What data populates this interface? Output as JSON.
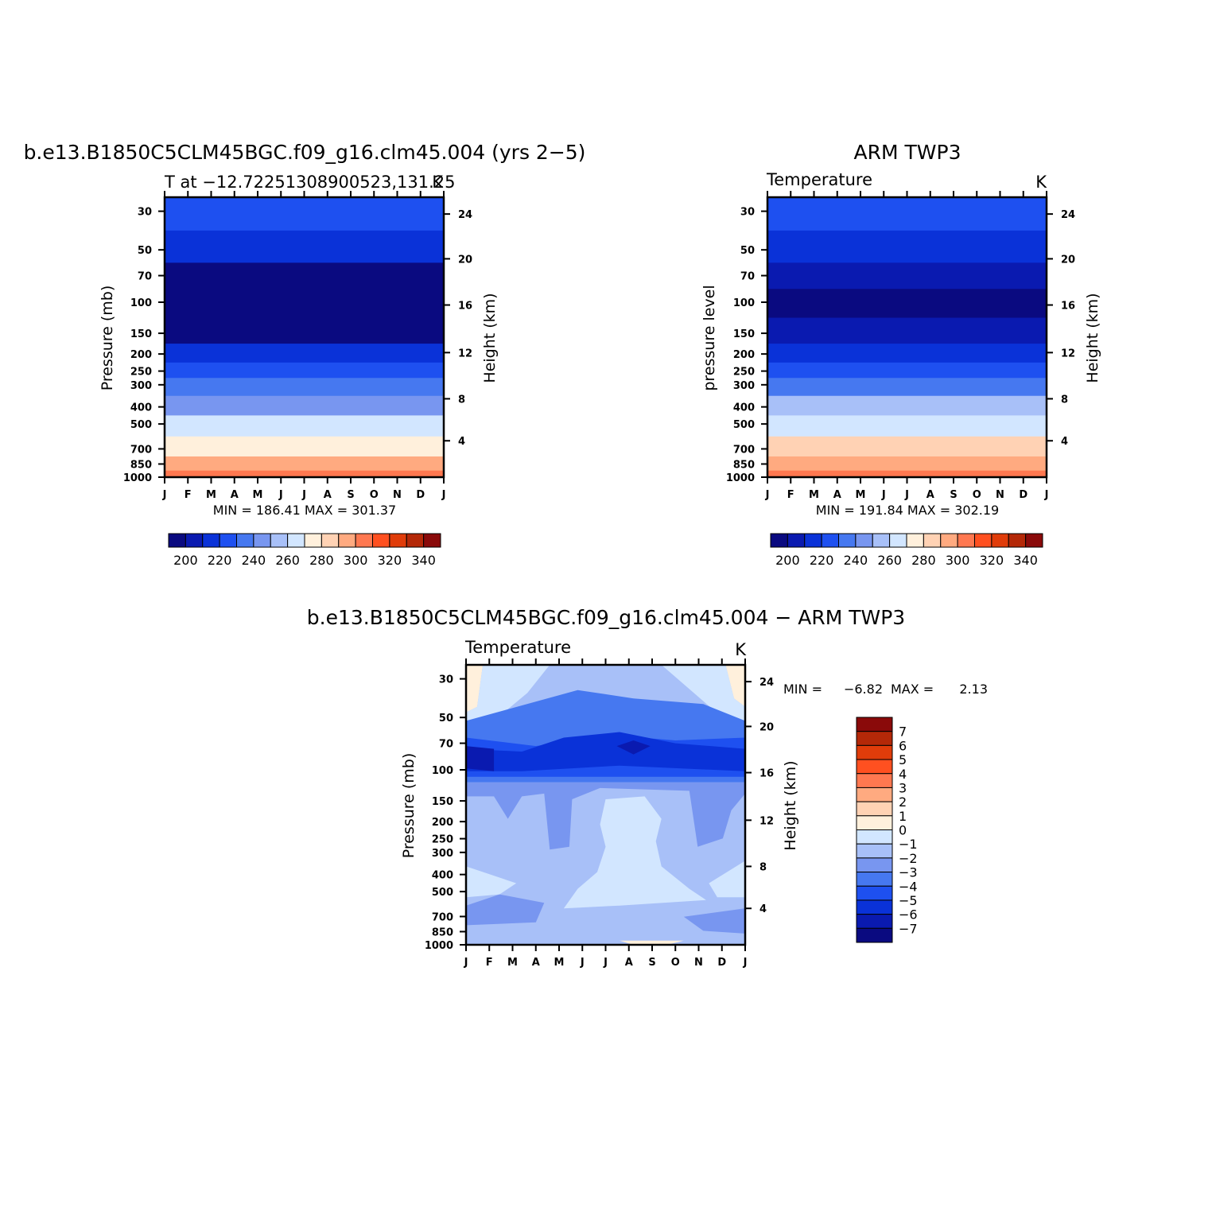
{
  "chart_data": [
    {
      "type": "heatmap",
      "title": "b.e13.B1850C5CLM45BGC.f09_g16.clm45.004 (yrs 2−5)",
      "subtitle_left": "T at −12.72251308900523,131.25",
      "subtitle_right": "K",
      "ylabel": "Pressure (mb)",
      "ylabel_right": "Height (km)",
      "x_ticks": [
        "J",
        "F",
        "M",
        "A",
        "M",
        "J",
        "J",
        "A",
        "S",
        "O",
        "N",
        "D",
        "J"
      ],
      "y_ticks": [
        "30",
        "50",
        "70",
        "100",
        "150",
        "200",
        "250",
        "300",
        "400",
        "500",
        "700",
        "850",
        "1000"
      ],
      "y_ticks_right": [
        "24",
        "20",
        "16",
        "12",
        "8",
        "4"
      ],
      "min_max": "MIN = 186.41 MAX = 301.37",
      "colorbar_labels": [
        "200",
        "220",
        "240",
        "260",
        "280",
        "300",
        "320",
        "340"
      ],
      "contour_levels": [
        190,
        200,
        210,
        220,
        230,
        240,
        250,
        260,
        270,
        280,
        290,
        300,
        310,
        320,
        330,
        340,
        350
      ],
      "profile_K": {
        "30": 226,
        "50": 214,
        "70": 196,
        "100": 190,
        "150": 199,
        "200": 211,
        "250": 222,
        "300": 233,
        "400": 248,
        "500": 262,
        "700": 279,
        "850": 290,
        "1000": 300
      }
    },
    {
      "type": "heatmap",
      "title": "ARM TWP3",
      "subtitle_left": "Temperature",
      "subtitle_right": "K",
      "ylabel": "pressure level",
      "ylabel_right": "Height (km)",
      "x_ticks": [
        "J",
        "F",
        "M",
        "A",
        "M",
        "J",
        "J",
        "A",
        "S",
        "O",
        "N",
        "D",
        "J"
      ],
      "y_ticks": [
        "30",
        "50",
        "70",
        "100",
        "150",
        "200",
        "250",
        "300",
        "400",
        "500",
        "700",
        "850",
        "1000"
      ],
      "y_ticks_right": [
        "24",
        "20",
        "16",
        "12",
        "8",
        "4"
      ],
      "min_max": "MIN = 191.84 MAX = 302.19",
      "colorbar_labels": [
        "200",
        "220",
        "240",
        "260",
        "280",
        "300",
        "320",
        "340"
      ],
      "contour_levels": [
        190,
        200,
        210,
        220,
        230,
        240,
        250,
        260,
        270,
        280,
        290,
        300,
        310,
        320,
        330,
        340,
        350
      ],
      "profile_K": {
        "30": 228,
        "50": 218,
        "70": 200,
        "100": 194,
        "150": 205,
        "200": 214,
        "250": 225,
        "300": 236,
        "400": 250,
        "500": 263,
        "700": 281,
        "850": 292,
        "1000": 302
      }
    },
    {
      "type": "heatmap",
      "title": "b.e13.B1850C5CLM45BGC.f09_g16.clm45.004 − ARM TWP3",
      "subtitle_left": "Temperature",
      "subtitle_right": "K",
      "ylabel": "Pressure (mb)",
      "ylabel_right": "Height (km)",
      "x_ticks": [
        "J",
        "F",
        "M",
        "A",
        "M",
        "J",
        "J",
        "A",
        "S",
        "O",
        "N",
        "D",
        "J"
      ],
      "y_ticks": [
        "30",
        "50",
        "70",
        "100",
        "150",
        "200",
        "250",
        "300",
        "400",
        "500",
        "700",
        "850",
        "1000"
      ],
      "y_ticks_right": [
        "24",
        "20",
        "16",
        "12",
        "8",
        "4"
      ],
      "min_max_label": "MIN =",
      "min_value": "−6.82",
      "max_label": "MAX =",
      "max_value": "2.13",
      "colorbar_labels": [
        "7",
        "6",
        "5",
        "4",
        "3",
        "2",
        "1",
        "0",
        "−1",
        "−2",
        "−3",
        "−4",
        "−5",
        "−6",
        "−7"
      ],
      "contour_levels": [
        -8,
        -7,
        -6,
        -5,
        -4,
        -3,
        -2,
        -1,
        0,
        1,
        2,
        3,
        4,
        5,
        6,
        7,
        8
      ]
    }
  ],
  "colors": {
    "temperature_palette": [
      "#0a0a80",
      "#0a1ab0",
      "#0a32d8",
      "#1e50f0",
      "#4678f0",
      "#7896f0",
      "#a8c0f8",
      "#d2e6ff",
      "#fff0dc",
      "#ffd2b4",
      "#ffaa80",
      "#ff7850",
      "#ff5020",
      "#e03c0a",
      "#b42808",
      "#8a0a0a"
    ],
    "difference_palette": [
      "#0a0a80",
      "#0a1ab0",
      "#0a32d8",
      "#1e50f0",
      "#4678f0",
      "#7896f0",
      "#a8c0f8",
      "#d2e6ff",
      "#fff0dc",
      "#ffd2b4",
      "#ffaa80",
      "#ff7850",
      "#ff5020",
      "#e03c0a",
      "#b42808",
      "#8a0a0a"
    ]
  }
}
